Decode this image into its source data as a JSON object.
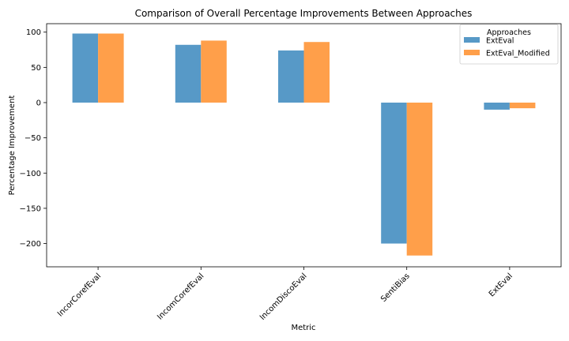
{
  "chart_data": {
    "type": "bar",
    "title": "Comparison of Overall Percentage Improvements Between Approaches",
    "xlabel": "Metric",
    "ylabel": "Percentage Improvement",
    "categories": [
      "IncorCorefEval",
      "IncomCorefEval",
      "IncomDiscoEval",
      "SentiBias",
      "ExtEval"
    ],
    "series": [
      {
        "name": "ExtEval",
        "color": "#5799c7",
        "values": [
          98,
          82,
          74,
          -200,
          -10
        ]
      },
      {
        "name": "ExtEval_Modified",
        "color": "#ff9f4a",
        "values": [
          98,
          88,
          86,
          -217,
          -8
        ]
      }
    ],
    "ylim": [
      -233,
      112
    ],
    "yticks": [
      100,
      50,
      0,
      -50,
      -100,
      -150,
      -200
    ],
    "ytick_labels": [
      "100",
      "50",
      "0",
      "−50",
      "−100",
      "−150",
      "−200"
    ],
    "legend": {
      "title": "Approaches",
      "position": "top-right"
    },
    "grid": false
  }
}
